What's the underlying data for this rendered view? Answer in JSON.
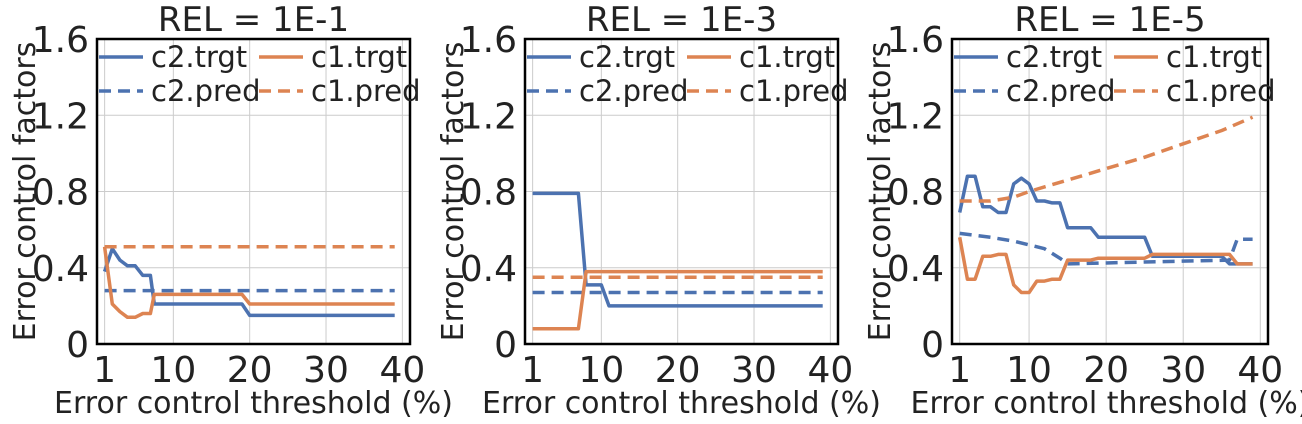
{
  "figure": {
    "colors": {
      "c2": "#4c72b0",
      "c1": "#dd8452",
      "grid": "#cccccc",
      "frame": "#000000"
    }
  },
  "chart_data": [
    {
      "type": "line",
      "title": "REL = 1E-1",
      "xlabel": "Error control threshold (%)",
      "ylabel": "Error control factors",
      "xlim": [
        0,
        41
      ],
      "ylim": [
        0,
        1.6
      ],
      "xticks": [
        1,
        10,
        20,
        30,
        40
      ],
      "xtick_labels": [
        "1",
        "10",
        "20",
        "30",
        "40"
      ],
      "yticks": [
        0,
        0.4,
        0.8,
        1.2,
        1.6
      ],
      "ytick_labels": [
        "0",
        "0.4",
        "0.8",
        "1.2",
        "1.6"
      ],
      "grid": true,
      "legend": {
        "placement": "top",
        "columns": 2,
        "entries": [
          "c2.trgt",
          "c1.trgt",
          "c2.pred",
          "c1.pred"
        ]
      },
      "series": [
        {
          "name": "c2.trgt",
          "color": "#4c72b0",
          "style": "solid",
          "x": [
            1,
            2,
            3,
            4,
            5,
            6,
            7,
            7.5,
            8,
            19,
            20,
            39
          ],
          "y": [
            0.38,
            0.5,
            0.44,
            0.41,
            0.41,
            0.36,
            0.36,
            0.21,
            0.21,
            0.21,
            0.15,
            0.15
          ]
        },
        {
          "name": "c2.pred",
          "color": "#4c72b0",
          "style": "dashed",
          "x": [
            1,
            39
          ],
          "y": [
            0.28,
            0.28
          ]
        },
        {
          "name": "c1.trgt",
          "color": "#dd8452",
          "style": "solid",
          "x": [
            1,
            2,
            3,
            4,
            5,
            6,
            7,
            7.5,
            8,
            19,
            20,
            39
          ],
          "y": [
            0.51,
            0.21,
            0.17,
            0.14,
            0.14,
            0.16,
            0.16,
            0.26,
            0.26,
            0.26,
            0.21,
            0.21
          ]
        },
        {
          "name": "c1.pred",
          "color": "#dd8452",
          "style": "dashed",
          "x": [
            1,
            39
          ],
          "y": [
            0.51,
            0.51
          ]
        }
      ]
    },
    {
      "type": "line",
      "title": "REL = 1E-3",
      "xlabel": "Error control threshold (%)",
      "ylabel": "Error control factors",
      "xlim": [
        0,
        41
      ],
      "ylim": [
        0,
        1.6
      ],
      "xticks": [
        1,
        10,
        20,
        30,
        40
      ],
      "xtick_labels": [
        "1",
        "10",
        "20",
        "30",
        "40"
      ],
      "yticks": [
        0,
        0.4,
        0.8,
        1.2,
        1.6
      ],
      "ytick_labels": [
        "0",
        "0.4",
        "0.8",
        "1.2",
        "1.6"
      ],
      "grid": true,
      "legend": {
        "placement": "top",
        "columns": 2,
        "entries": [
          "c2.trgt",
          "c1.trgt",
          "c2.pred",
          "c1.pred"
        ]
      },
      "series": [
        {
          "name": "c2.trgt",
          "color": "#4c72b0",
          "style": "solid",
          "x": [
            1,
            7,
            8,
            10,
            11,
            39
          ],
          "y": [
            0.79,
            0.79,
            0.31,
            0.31,
            0.2,
            0.2
          ]
        },
        {
          "name": "c2.pred",
          "color": "#4c72b0",
          "style": "dashed",
          "x": [
            1,
            39
          ],
          "y": [
            0.27,
            0.27
          ]
        },
        {
          "name": "c1.trgt",
          "color": "#dd8452",
          "style": "solid",
          "x": [
            1,
            7,
            8,
            39
          ],
          "y": [
            0.08,
            0.08,
            0.38,
            0.38
          ]
        },
        {
          "name": "c1.pred",
          "color": "#dd8452",
          "style": "dashed",
          "x": [
            1,
            39
          ],
          "y": [
            0.35,
            0.35
          ]
        }
      ]
    },
    {
      "type": "line",
      "title": "REL = 1E-5",
      "xlabel": "Error control threshold (%)",
      "ylabel": "Error control factors",
      "xlim": [
        0,
        41
      ],
      "ylim": [
        0,
        1.6
      ],
      "xticks": [
        1,
        10,
        20,
        30,
        40
      ],
      "xtick_labels": [
        "1",
        "10",
        "20",
        "30",
        "40"
      ],
      "yticks": [
        0,
        0.4,
        0.8,
        1.2,
        1.6
      ],
      "ytick_labels": [
        "0",
        "0.4",
        "0.8",
        "1.2",
        "1.6"
      ],
      "grid": true,
      "legend": {
        "placement": "top",
        "columns": 2,
        "entries": [
          "c2.trgt",
          "c1.trgt",
          "c2.pred",
          "c1.pred"
        ]
      },
      "series": [
        {
          "name": "c2.trgt",
          "color": "#4c72b0",
          "style": "solid",
          "x": [
            1,
            2,
            3,
            4,
            5,
            6,
            7,
            8,
            9,
            10,
            11,
            12,
            13,
            14,
            15,
            16,
            17,
            18,
            19,
            25,
            26,
            35,
            36,
            37,
            39
          ],
          "y": [
            0.69,
            0.88,
            0.88,
            0.72,
            0.72,
            0.69,
            0.69,
            0.84,
            0.87,
            0.84,
            0.75,
            0.75,
            0.74,
            0.74,
            0.61,
            0.61,
            0.61,
            0.61,
            0.56,
            0.56,
            0.46,
            0.46,
            0.42,
            0.42,
            0.42
          ]
        },
        {
          "name": "c2.pred",
          "color": "#4c72b0",
          "style": "dashed",
          "x": [
            1,
            5,
            8,
            12,
            14,
            15,
            25,
            36,
            37,
            39
          ],
          "y": [
            0.58,
            0.56,
            0.54,
            0.5,
            0.45,
            0.42,
            0.43,
            0.44,
            0.55,
            0.55
          ]
        },
        {
          "name": "c1.trgt",
          "color": "#dd8452",
          "style": "solid",
          "x": [
            1,
            2,
            3,
            4,
            5,
            6,
            7,
            8,
            9,
            10,
            11,
            12,
            13,
            14,
            15,
            16,
            17,
            18,
            19,
            25,
            26,
            36,
            37,
            39
          ],
          "y": [
            0.56,
            0.34,
            0.34,
            0.46,
            0.46,
            0.47,
            0.47,
            0.31,
            0.27,
            0.27,
            0.33,
            0.33,
            0.34,
            0.34,
            0.44,
            0.44,
            0.44,
            0.44,
            0.45,
            0.45,
            0.47,
            0.47,
            0.42,
            0.42
          ]
        },
        {
          "name": "c1.pred",
          "color": "#dd8452",
          "style": "dashed",
          "x": [
            1,
            5,
            8,
            10,
            15,
            20,
            25,
            30,
            35,
            39
          ],
          "y": [
            0.75,
            0.75,
            0.77,
            0.8,
            0.86,
            0.92,
            0.98,
            1.05,
            1.12,
            1.19
          ]
        }
      ]
    }
  ]
}
